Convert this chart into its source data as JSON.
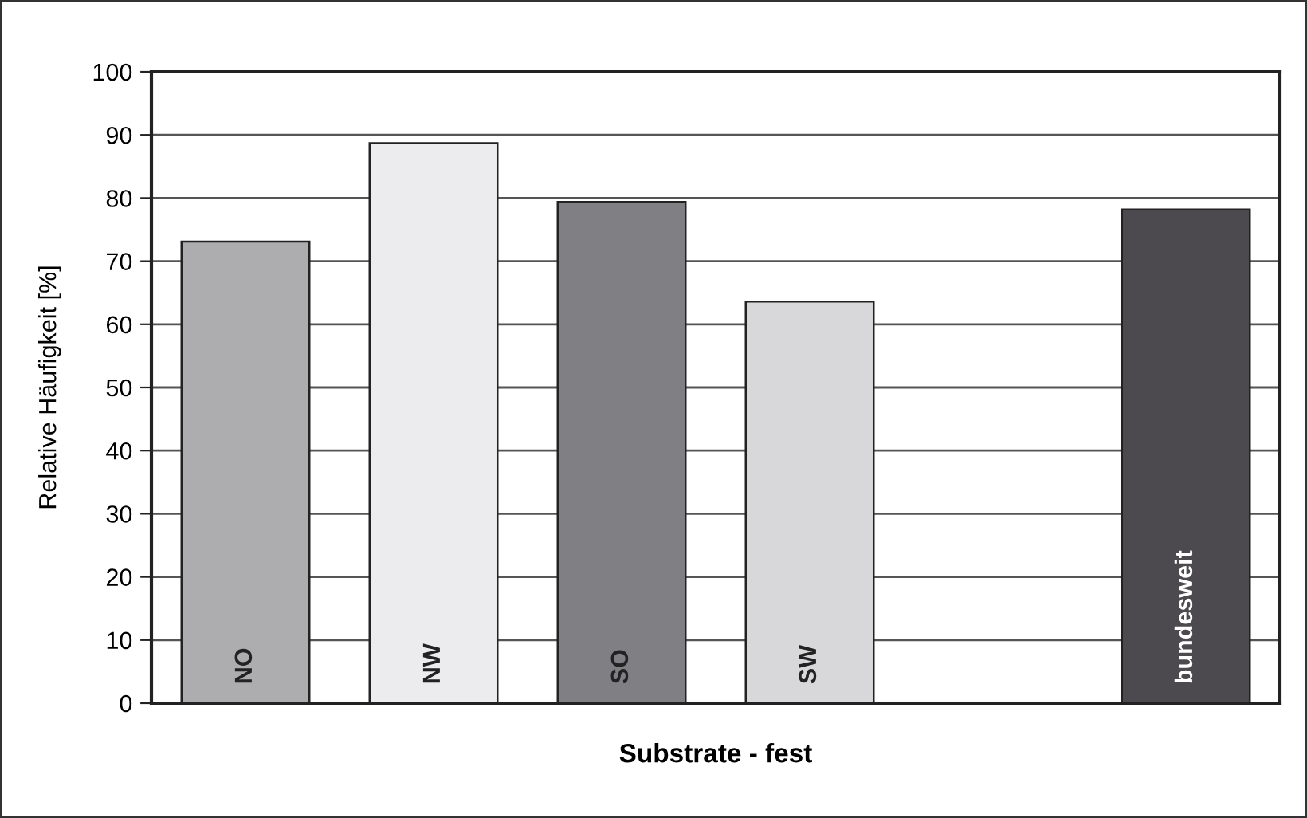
{
  "chart_data": {
    "type": "bar",
    "xlabel": "Substrate - fest",
    "ylabel": "Relative Häufigkeit [%]",
    "categories": [
      "NO",
      "NW",
      "SO",
      "SW",
      null,
      "bundesweit"
    ],
    "values": [
      73.1,
      88.7,
      79.4,
      63.6,
      null,
      78.2
    ],
    "colors": [
      "#adadb0",
      "#ececee",
      "#807f84",
      "#d8d8da",
      "#ffffff",
      "#4c4a4f"
    ],
    "ylim": [
      0,
      100
    ],
    "yticks": [
      0,
      10,
      20,
      30,
      40,
      50,
      60,
      70,
      80,
      90,
      100
    ],
    "grid": "y"
  }
}
